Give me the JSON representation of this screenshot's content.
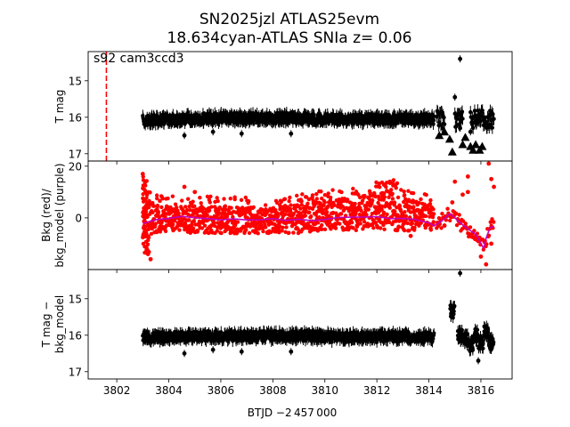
{
  "title_line1": "SN2025jzl  ATLAS25evm",
  "title_line2": "18.634cyan-ATLAS SNIa z= 0.06",
  "annotation": "s92 cam3ccd3",
  "xlabel": "BTJD −2 457 000",
  "colors": {
    "lc": "#000000",
    "bkg": "#ff0000",
    "model": "#bf00bf",
    "marker_line": "#ff0000"
  },
  "chart_data": [
    {
      "type": "scatter",
      "panel": "top",
      "ylabel": "T mag",
      "yinvert": true,
      "ylim": [
        17.2,
        14.2
      ],
      "xlim": [
        3800.9,
        3817.2
      ],
      "yticks": [
        15,
        16,
        17
      ],
      "vline_x": 3801.6,
      "band": [
        {
          "x": 3803.0,
          "y": 16.1
        },
        {
          "x": 3803.5,
          "y": 16.08
        },
        {
          "x": 3804.0,
          "y": 16.05
        },
        {
          "x": 3804.5,
          "y": 16.05
        },
        {
          "x": 3805.0,
          "y": 16.05
        },
        {
          "x": 3805.5,
          "y": 16.03
        },
        {
          "x": 3806.0,
          "y": 16.02
        },
        {
          "x": 3806.5,
          "y": 16.02
        },
        {
          "x": 3807.0,
          "y": 16.03
        },
        {
          "x": 3807.5,
          "y": 16.02
        },
        {
          "x": 3808.0,
          "y": 16.02
        },
        {
          "x": 3808.5,
          "y": 16.02
        },
        {
          "x": 3809.0,
          "y": 16.02
        },
        {
          "x": 3809.6,
          "y": 16.02
        },
        {
          "x": 3810.0,
          "y": 16.03
        },
        {
          "x": 3810.5,
          "y": 16.05
        },
        {
          "x": 3811.0,
          "y": 16.05
        },
        {
          "x": 3811.5,
          "y": 16.05
        },
        {
          "x": 3812.0,
          "y": 16.05
        },
        {
          "x": 3812.5,
          "y": 16.05
        },
        {
          "x": 3813.0,
          "y": 16.05
        },
        {
          "x": 3813.5,
          "y": 16.05
        },
        {
          "x": 3814.2,
          "y": 16.05
        }
      ],
      "outliers": [
        {
          "x": 3815.2,
          "y": 14.4
        },
        {
          "x": 3815.0,
          "y": 15.45
        },
        {
          "x": 3804.6,
          "y": 16.5
        },
        {
          "x": 3806.8,
          "y": 16.45
        },
        {
          "x": 3808.7,
          "y": 16.45
        },
        {
          "x": 3805.7,
          "y": 16.4
        },
        {
          "x": 3815.2,
          "y": 16.3
        },
        {
          "x": 3815.6,
          "y": 16.4
        },
        {
          "x": 3816.3,
          "y": 16.0
        }
      ],
      "upper_limits": [
        {
          "x": 3814.4,
          "y": 16.5
        },
        {
          "x": 3814.6,
          "y": 16.4
        },
        {
          "x": 3814.8,
          "y": 16.6
        },
        {
          "x": 3814.9,
          "y": 16.95
        },
        {
          "x": 3815.3,
          "y": 16.75
        },
        {
          "x": 3815.4,
          "y": 16.55
        },
        {
          "x": 3815.6,
          "y": 16.8
        },
        {
          "x": 3815.7,
          "y": 16.9
        },
        {
          "x": 3815.8,
          "y": 16.75
        },
        {
          "x": 3815.95,
          "y": 16.9
        },
        {
          "x": 3816.05,
          "y": 16.8
        }
      ]
    },
    {
      "type": "scatter",
      "panel": "middle",
      "ylabel": "Bkg (red)/ bkg_model (purple)",
      "ylim": [
        -20,
        22
      ],
      "xlim": [
        3800.9,
        3817.2
      ],
      "yticks": [
        0,
        20
      ],
      "model": [
        {
          "x": 3803.0,
          "y": -2
        },
        {
          "x": 3803.5,
          "y": -1
        },
        {
          "x": 3804.0,
          "y": 0
        },
        {
          "x": 3804.5,
          "y": 0.5
        },
        {
          "x": 3805.0,
          "y": 0
        },
        {
          "x": 3805.5,
          "y": -0.5
        },
        {
          "x": 3806.0,
          "y": -1
        },
        {
          "x": 3806.5,
          "y": -0.5
        },
        {
          "x": 3807.0,
          "y": -1
        },
        {
          "x": 3807.5,
          "y": -1
        },
        {
          "x": 3808.0,
          "y": -0.5
        },
        {
          "x": 3808.5,
          "y": -1
        },
        {
          "x": 3809.0,
          "y": -0.5
        },
        {
          "x": 3809.5,
          "y": -1
        },
        {
          "x": 3810.0,
          "y": -0.5
        },
        {
          "x": 3810.5,
          "y": 0
        },
        {
          "x": 3811.0,
          "y": 0.5
        },
        {
          "x": 3811.5,
          "y": 0
        },
        {
          "x": 3812.0,
          "y": 0.5
        },
        {
          "x": 3812.5,
          "y": 0
        },
        {
          "x": 3813.0,
          "y": 0
        },
        {
          "x": 3813.5,
          "y": -0.5
        },
        {
          "x": 3814.0,
          "y": -2
        },
        {
          "x": 3814.2,
          "y": -3
        },
        {
          "x": 3814.5,
          "y": -1
        },
        {
          "x": 3814.8,
          "y": 1.5
        },
        {
          "x": 3815.0,
          "y": 0
        },
        {
          "x": 3815.3,
          "y": -3
        },
        {
          "x": 3815.6,
          "y": -5
        },
        {
          "x": 3815.8,
          "y": -6
        },
        {
          "x": 3816.0,
          "y": -10
        },
        {
          "x": 3816.1,
          "y": -12
        },
        {
          "x": 3816.2,
          "y": -8
        },
        {
          "x": 3816.35,
          "y": -4
        },
        {
          "x": 3816.5,
          "y": -3
        }
      ],
      "bkg_band": [
        {
          "x": 3803.0,
          "y0": -8,
          "y1": 8
        },
        {
          "x": 3803.4,
          "y0": -6,
          "y1": 5
        },
        {
          "x": 3804.0,
          "y0": -5,
          "y1": 5
        },
        {
          "x": 3805.0,
          "y0": -6,
          "y1": 4
        },
        {
          "x": 3806.0,
          "y0": -6,
          "y1": 5
        },
        {
          "x": 3807.0,
          "y0": -6,
          "y1": 4
        },
        {
          "x": 3808.0,
          "y0": -6,
          "y1": 4
        },
        {
          "x": 3809.0,
          "y0": -6,
          "y1": 5
        },
        {
          "x": 3810.0,
          "y0": -5,
          "y1": 7
        },
        {
          "x": 3811.0,
          "y0": -5,
          "y1": 8
        },
        {
          "x": 3812.0,
          "y0": -4,
          "y1": 10
        },
        {
          "x": 3812.6,
          "y0": -5,
          "y1": 11
        },
        {
          "x": 3813.0,
          "y0": -5,
          "y1": 8
        },
        {
          "x": 3814.2,
          "y0": -5,
          "y1": 4
        }
      ],
      "bkg_outliers": [
        {
          "x": 3803.0,
          "y": 17
        },
        {
          "x": 3803.2,
          "y": -14
        },
        {
          "x": 3803.3,
          "y": -16
        },
        {
          "x": 3804.6,
          "y": 12
        },
        {
          "x": 3805.0,
          "y": 10
        },
        {
          "x": 3812.5,
          "y": 14
        },
        {
          "x": 3813.3,
          "y": -7
        },
        {
          "x": 3814.6,
          "y": -3
        },
        {
          "x": 3814.9,
          "y": 6
        },
        {
          "x": 3815.0,
          "y": 14
        },
        {
          "x": 3815.3,
          "y": 9
        },
        {
          "x": 3815.5,
          "y": 16
        },
        {
          "x": 3815.5,
          "y": 10
        },
        {
          "x": 3815.9,
          "y": -9
        },
        {
          "x": 3816.0,
          "y": -15
        },
        {
          "x": 3816.2,
          "y": -18
        },
        {
          "x": 3816.3,
          "y": 21
        },
        {
          "x": 3816.4,
          "y": 15
        },
        {
          "x": 3816.5,
          "y": 12
        },
        {
          "x": 3816.4,
          "y": -10
        }
      ]
    },
    {
      "type": "scatter",
      "panel": "bottom",
      "ylabel": "T mag − bkg_model",
      "yinvert": true,
      "ylim": [
        17.2,
        14.2
      ],
      "xlim": [
        3800.9,
        3817.2
      ],
      "yticks": [
        15,
        16,
        17
      ],
      "xticks": [
        3802,
        3804,
        3806,
        3808,
        3810,
        3812,
        3814,
        3816
      ],
      "band": [
        {
          "x": 3803.0,
          "y": 16.05
        },
        {
          "x": 3804.0,
          "y": 16.05
        },
        {
          "x": 3805.0,
          "y": 16.03
        },
        {
          "x": 3806.0,
          "y": 16.02
        },
        {
          "x": 3807.0,
          "y": 16.03
        },
        {
          "x": 3808.0,
          "y": 16.02
        },
        {
          "x": 3809.0,
          "y": 16.02
        },
        {
          "x": 3809.6,
          "y": 16.02
        },
        {
          "x": 3810.0,
          "y": 16.05
        },
        {
          "x": 3811.0,
          "y": 16.05
        },
        {
          "x": 3812.0,
          "y": 16.05
        },
        {
          "x": 3813.0,
          "y": 16.05
        },
        {
          "x": 3814.2,
          "y": 16.05
        }
      ],
      "late_points": [
        {
          "x": 3814.9,
          "y": 15.35
        },
        {
          "x": 3815.2,
          "y": 16.0
        },
        {
          "x": 3815.4,
          "y": 16.1
        },
        {
          "x": 3815.6,
          "y": 16.3
        },
        {
          "x": 3815.8,
          "y": 16.0
        },
        {
          "x": 3816.0,
          "y": 16.2
        },
        {
          "x": 3816.2,
          "y": 15.9
        },
        {
          "x": 3816.4,
          "y": 16.2
        }
      ],
      "outliers": [
        {
          "x": 3815.2,
          "y": 14.3
        },
        {
          "x": 3804.6,
          "y": 16.5
        },
        {
          "x": 3805.7,
          "y": 16.4
        },
        {
          "x": 3806.8,
          "y": 16.45
        },
        {
          "x": 3808.7,
          "y": 16.45
        },
        {
          "x": 3815.9,
          "y": 16.7
        }
      ]
    }
  ]
}
